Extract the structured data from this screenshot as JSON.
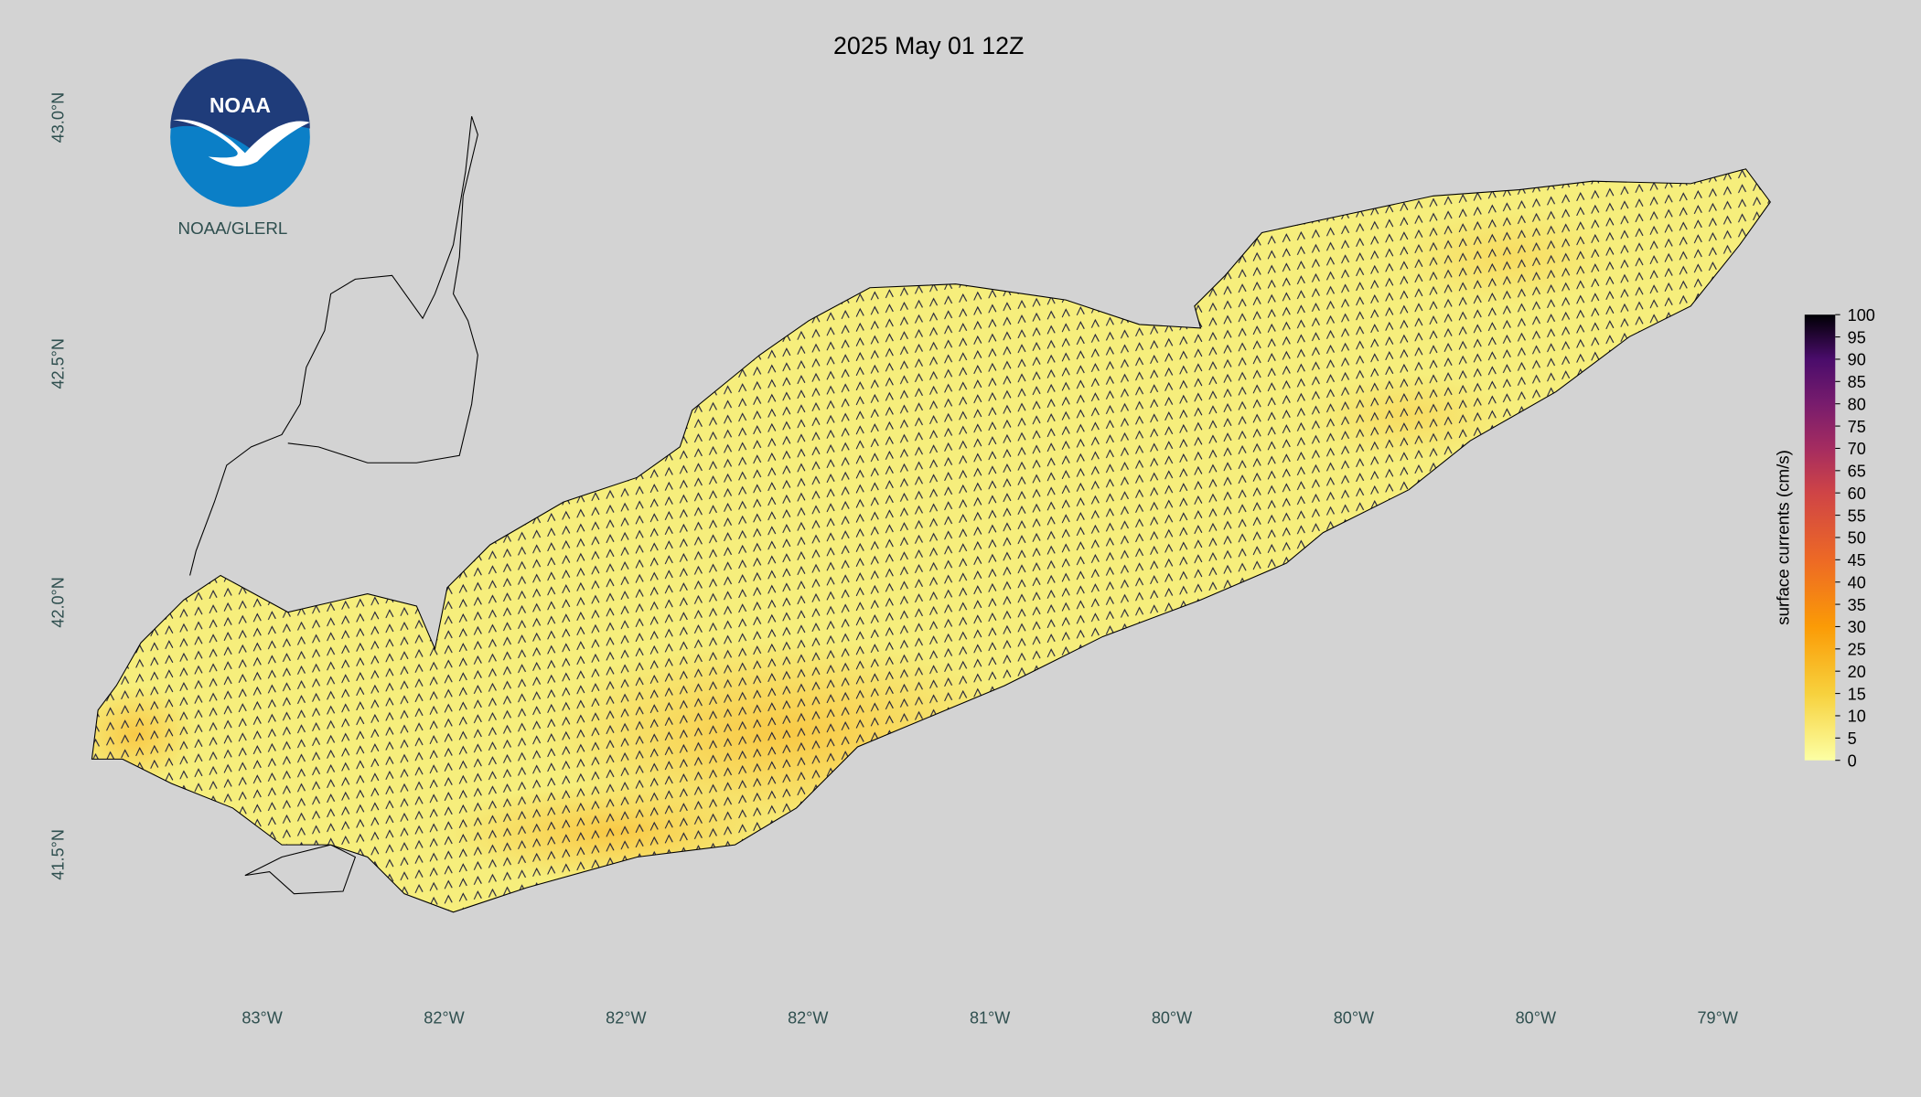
{
  "title": "2025 May 01 12Z",
  "logo": {
    "text": "NOAA",
    "caption": "NOAA/GLERL"
  },
  "lat_labels": [
    "43.0°N",
    "42.5°N",
    "42.0°N",
    "41.5°N"
  ],
  "lon_labels": [
    "83°W",
    "82°W",
    "82°W",
    "82°W",
    "81°W",
    "80°W",
    "80°W",
    "80°W",
    "79°W"
  ],
  "colorbar": {
    "label": "surface currents (cm/s)",
    "range": [
      0,
      100
    ],
    "ticks": [
      0,
      5,
      10,
      15,
      20,
      25,
      30,
      35,
      40,
      45,
      50,
      55,
      60,
      65,
      70,
      75,
      80,
      85,
      90,
      95,
      100
    ]
  }
}
